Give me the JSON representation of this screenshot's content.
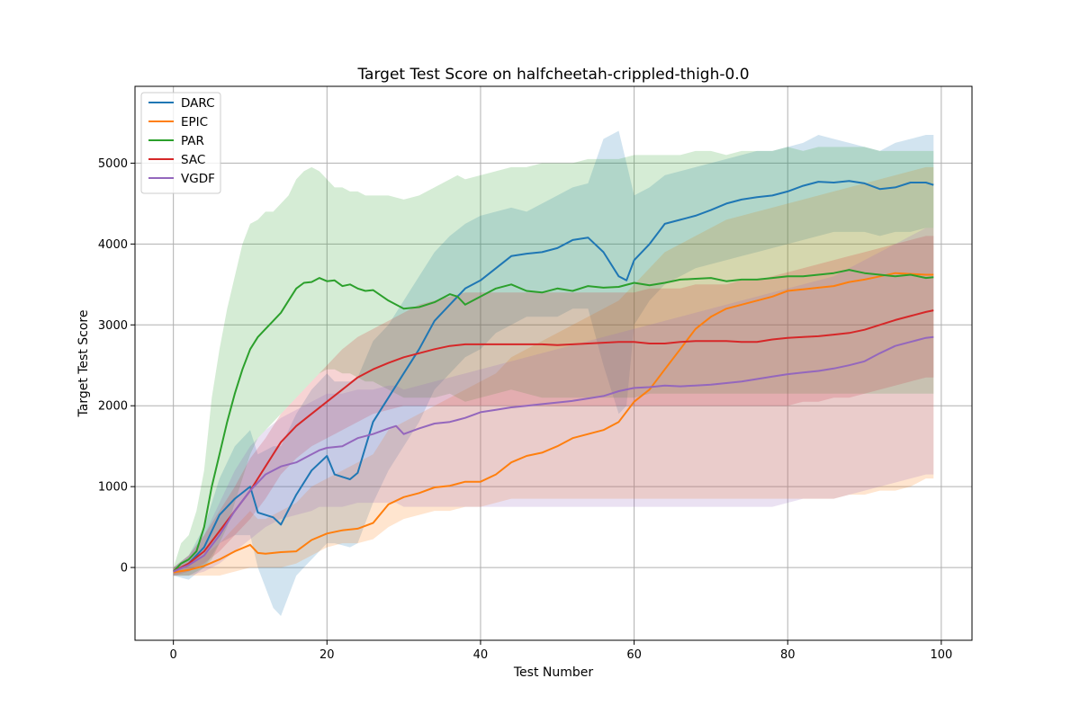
{
  "chart_data": {
    "type": "line",
    "title": "Target Test Score on halfcheetah-crippled-thigh-0.0",
    "xlabel": "Test Number",
    "ylabel": "Target Test Score",
    "xlim": [
      -5,
      104
    ],
    "ylim": [
      -900,
      5950
    ],
    "x_ticks": [
      0,
      20,
      40,
      60,
      80,
      100
    ],
    "y_ticks": [
      0,
      1000,
      2000,
      3000,
      4000,
      5000
    ],
    "grid": true,
    "legend_position": "top-left",
    "band_opacity": 0.2,
    "series": [
      {
        "name": "DARC",
        "color": "#1f77b4",
        "x": [
          0,
          2,
          4,
          6,
          8,
          10,
          11,
          13,
          14,
          16,
          18,
          20,
          21,
          23,
          24,
          26,
          28,
          30,
          32,
          34,
          36,
          38,
          40,
          42,
          44,
          46,
          48,
          50,
          52,
          54,
          56,
          58,
          59,
          60,
          62,
          64,
          66,
          68,
          70,
          72,
          74,
          76,
          78,
          80,
          82,
          84,
          86,
          88,
          90,
          92,
          94,
          96,
          98,
          99
        ],
        "y": [
          -50,
          50,
          250,
          650,
          850,
          1000,
          680,
          620,
          530,
          900,
          1200,
          1380,
          1150,
          1090,
          1170,
          1800,
          2100,
          2400,
          2700,
          3050,
          3250,
          3450,
          3550,
          3700,
          3850,
          3880,
          3900,
          3950,
          4050,
          4080,
          3900,
          3600,
          3550,
          3800,
          4000,
          4250,
          4300,
          4350,
          4420,
          4500,
          4550,
          4580,
          4600,
          4650,
          4720,
          4770,
          4760,
          4780,
          4750,
          4680,
          4700,
          4760,
          4760,
          4730
        ],
        "upper": [
          0,
          150,
          500,
          1100,
          1500,
          1700,
          1400,
          1500,
          1500,
          1900,
          2200,
          2400,
          2300,
          2300,
          2350,
          2800,
          3000,
          3300,
          3600,
          3900,
          4100,
          4250,
          4350,
          4400,
          4450,
          4400,
          4500,
          4600,
          4700,
          4750,
          5300,
          5400,
          5000,
          4600,
          4700,
          4850,
          4900,
          4950,
          5000,
          5050,
          5100,
          5150,
          5150,
          5200,
          5250,
          5350,
          5300,
          5250,
          5200,
          5150,
          5250,
          5300,
          5350,
          5350
        ],
        "lower": [
          -100,
          -150,
          0,
          300,
          400,
          400,
          0,
          -500,
          -600,
          -100,
          100,
          300,
          300,
          250,
          300,
          800,
          1200,
          1500,
          1800,
          2200,
          2400,
          2600,
          2700,
          2900,
          3000,
          3100,
          3100,
          3100,
          3200,
          3200,
          2500,
          1900,
          2000,
          3000,
          3300,
          3500,
          3600,
          3700,
          3750,
          3800,
          3850,
          3900,
          3950,
          4000,
          4050,
          4100,
          4150,
          4150,
          4150,
          4100,
          4150,
          4150,
          4200,
          4200
        ]
      },
      {
        "name": "EPIC",
        "color": "#ff7f0e",
        "x": [
          0,
          2,
          4,
          6,
          8,
          10,
          11,
          12,
          14,
          16,
          18,
          20,
          22,
          24,
          26,
          28,
          30,
          32,
          34,
          36,
          38,
          40,
          42,
          44,
          46,
          48,
          50,
          52,
          54,
          56,
          58,
          60,
          62,
          64,
          66,
          68,
          70,
          72,
          74,
          76,
          78,
          80,
          82,
          84,
          86,
          88,
          90,
          92,
          94,
          96,
          98,
          99
        ],
        "y": [
          -60,
          -30,
          20,
          100,
          200,
          280,
          180,
          170,
          190,
          200,
          340,
          420,
          460,
          480,
          550,
          780,
          870,
          920,
          990,
          1010,
          1060,
          1060,
          1150,
          1300,
          1380,
          1420,
          1500,
          1600,
          1650,
          1700,
          1800,
          2050,
          2200,
          2450,
          2700,
          2950,
          3100,
          3200,
          3250,
          3300,
          3350,
          3420,
          3440,
          3460,
          3480,
          3530,
          3560,
          3600,
          3640,
          3630,
          3620,
          3620
        ],
        "upper": [
          0,
          50,
          150,
          300,
          500,
          700,
          600,
          600,
          700,
          800,
          1000,
          1100,
          1200,
          1300,
          1400,
          1700,
          1800,
          1900,
          2000,
          2100,
          2200,
          2300,
          2400,
          2600,
          2700,
          2800,
          2900,
          3000,
          3100,
          3200,
          3300,
          3500,
          3700,
          3900,
          4000,
          4100,
          4200,
          4300,
          4350,
          4400,
          4450,
          4500,
          4550,
          4600,
          4650,
          4700,
          4750,
          4800,
          4850,
          4900,
          4950,
          4950
        ],
        "lower": [
          -100,
          -100,
          -100,
          -100,
          -50,
          0,
          0,
          0,
          0,
          50,
          150,
          250,
          300,
          300,
          350,
          500,
          600,
          650,
          700,
          700,
          750,
          750,
          800,
          850,
          850,
          850,
          850,
          850,
          850,
          850,
          850,
          850,
          850,
          850,
          850,
          850,
          850,
          850,
          850,
          850,
          850,
          850,
          850,
          850,
          850,
          900,
          900,
          950,
          950,
          1000,
          1100,
          1100
        ]
      },
      {
        "name": "PAR",
        "color": "#2ca02c",
        "x": [
          0,
          1,
          2,
          3,
          4,
          5,
          6,
          7,
          8,
          9,
          10,
          11,
          12,
          13,
          14,
          15,
          16,
          17,
          18,
          19,
          20,
          21,
          22,
          23,
          24,
          25,
          26,
          28,
          30,
          32,
          34,
          36,
          37,
          38,
          40,
          42,
          44,
          46,
          48,
          50,
          52,
          54,
          56,
          58,
          60,
          62,
          64,
          66,
          68,
          70,
          72,
          74,
          76,
          78,
          80,
          82,
          84,
          86,
          88,
          90,
          92,
          94,
          96,
          98,
          99
        ],
        "y": [
          -50,
          50,
          100,
          200,
          500,
          1000,
          1400,
          1800,
          2150,
          2450,
          2700,
          2850,
          2950,
          3050,
          3150,
          3300,
          3450,
          3520,
          3530,
          3580,
          3540,
          3550,
          3480,
          3500,
          3450,
          3420,
          3430,
          3300,
          3200,
          3220,
          3280,
          3380,
          3350,
          3250,
          3350,
          3450,
          3500,
          3420,
          3400,
          3450,
          3420,
          3480,
          3460,
          3470,
          3520,
          3490,
          3520,
          3560,
          3570,
          3580,
          3540,
          3560,
          3560,
          3580,
          3600,
          3600,
          3620,
          3640,
          3680,
          3640,
          3620,
          3600,
          3620,
          3580,
          3590
        ],
        "upper": [
          0,
          300,
          400,
          700,
          1200,
          2100,
          2700,
          3200,
          3600,
          4000,
          4250,
          4300,
          4400,
          4400,
          4500,
          4600,
          4800,
          4900,
          4950,
          4900,
          4800,
          4700,
          4700,
          4650,
          4650,
          4600,
          4600,
          4600,
          4550,
          4600,
          4700,
          4800,
          4850,
          4800,
          4850,
          4900,
          4950,
          4950,
          5000,
          5000,
          5000,
          5050,
          5050,
          5050,
          5100,
          5100,
          5100,
          5100,
          5150,
          5150,
          5100,
          5150,
          5150,
          5150,
          5200,
          5150,
          5200,
          5200,
          5200,
          5200,
          5150,
          5150,
          5150,
          5150,
          5150
        ],
        "lower": [
          -100,
          -100,
          -100,
          -50,
          0,
          100,
          300,
          500,
          800,
          1100,
          1400,
          1600,
          1700,
          1800,
          1900,
          2000,
          2100,
          2200,
          2300,
          2400,
          2450,
          2450,
          2400,
          2400,
          2350,
          2300,
          2300,
          2200,
          2100,
          2100,
          2100,
          2150,
          2100,
          2050,
          2100,
          2150,
          2200,
          2150,
          2100,
          2100,
          2100,
          2100,
          2100,
          2100,
          2100,
          2150,
          2150,
          2150,
          2150,
          2150,
          2150,
          2150,
          2150,
          2150,
          2150,
          2150,
          2150,
          2150,
          2150,
          2150,
          2150,
          2150,
          2150,
          2150,
          2150
        ]
      },
      {
        "name": "SAC",
        "color": "#d62728",
        "x": [
          0,
          2,
          4,
          6,
          8,
          10,
          12,
          14,
          16,
          18,
          20,
          22,
          24,
          26,
          28,
          30,
          32,
          34,
          36,
          38,
          40,
          42,
          44,
          46,
          48,
          50,
          52,
          54,
          56,
          58,
          60,
          62,
          64,
          66,
          68,
          70,
          72,
          74,
          76,
          78,
          80,
          82,
          84,
          86,
          88,
          90,
          92,
          94,
          96,
          98,
          99
        ],
        "y": [
          -50,
          50,
          200,
          450,
          700,
          950,
          1250,
          1550,
          1750,
          1900,
          2050,
          2200,
          2350,
          2450,
          2530,
          2600,
          2650,
          2700,
          2740,
          2760,
          2760,
          2760,
          2760,
          2760,
          2760,
          2750,
          2760,
          2770,
          2780,
          2790,
          2790,
          2770,
          2770,
          2790,
          2800,
          2800,
          2800,
          2790,
          2790,
          2820,
          2840,
          2850,
          2860,
          2880,
          2900,
          2940,
          3000,
          3060,
          3110,
          3160,
          3180
        ],
        "upper": [
          0,
          150,
          400,
          700,
          1000,
          1350,
          1600,
          1900,
          2100,
          2300,
          2500,
          2700,
          2850,
          2950,
          3050,
          3150,
          3250,
          3300,
          3350,
          3400,
          3400,
          3400,
          3400,
          3400,
          3400,
          3400,
          3400,
          3400,
          3400,
          3400,
          3400,
          3450,
          3450,
          3450,
          3500,
          3500,
          3500,
          3550,
          3550,
          3600,
          3650,
          3700,
          3750,
          3800,
          3850,
          3900,
          3950,
          4000,
          4050,
          4100,
          4100
        ],
        "lower": [
          -100,
          -50,
          50,
          200,
          400,
          600,
          850,
          1150,
          1350,
          1500,
          1600,
          1700,
          1800,
          1900,
          1950,
          2000,
          2000,
          2000,
          2000,
          2000,
          2000,
          2000,
          2000,
          2000,
          2000,
          2000,
          2000,
          2000,
          2000,
          2000,
          2000,
          2000,
          2000,
          2000,
          2000,
          2000,
          2000,
          2000,
          2000,
          2000,
          2000,
          2050,
          2050,
          2100,
          2100,
          2150,
          2200,
          2250,
          2300,
          2350,
          2350
        ]
      },
      {
        "name": "VGDF",
        "color": "#9467bd",
        "x": [
          0,
          2,
          4,
          6,
          8,
          10,
          12,
          14,
          16,
          18,
          19,
          20,
          22,
          24,
          26,
          28,
          29,
          30,
          32,
          34,
          36,
          38,
          40,
          42,
          44,
          46,
          48,
          50,
          52,
          54,
          56,
          58,
          60,
          62,
          64,
          66,
          68,
          70,
          72,
          74,
          76,
          78,
          80,
          82,
          84,
          86,
          88,
          90,
          92,
          94,
          96,
          98,
          99
        ],
        "y": [
          -50,
          30,
          150,
          400,
          700,
          950,
          1150,
          1250,
          1300,
          1400,
          1450,
          1480,
          1500,
          1600,
          1650,
          1720,
          1750,
          1650,
          1720,
          1780,
          1800,
          1850,
          1920,
          1950,
          1980,
          2000,
          2020,
          2040,
          2060,
          2090,
          2120,
          2180,
          2220,
          2230,
          2250,
          2240,
          2250,
          2260,
          2280,
          2300,
          2330,
          2360,
          2390,
          2410,
          2430,
          2460,
          2500,
          2550,
          2650,
          2740,
          2790,
          2840,
          2850
        ],
        "upper": [
          0,
          150,
          400,
          800,
          1200,
          1500,
          1700,
          1850,
          1950,
          2050,
          2100,
          2150,
          2150,
          2200,
          2200,
          2250,
          2250,
          2200,
          2250,
          2300,
          2350,
          2400,
          2450,
          2500,
          2550,
          2600,
          2650,
          2700,
          2750,
          2800,
          2850,
          2900,
          2950,
          3000,
          3050,
          3100,
          3150,
          3200,
          3250,
          3300,
          3350,
          3400,
          3450,
          3500,
          3550,
          3600,
          3700,
          3800,
          3900,
          4000,
          4100,
          4200,
          4200
        ],
        "lower": [
          -100,
          -100,
          -50,
          50,
          200,
          350,
          500,
          600,
          650,
          700,
          750,
          750,
          750,
          800,
          800,
          800,
          800,
          750,
          750,
          750,
          750,
          750,
          750,
          750,
          750,
          750,
          750,
          750,
          750,
          750,
          750,
          750,
          750,
          750,
          750,
          750,
          750,
          750,
          750,
          750,
          750,
          750,
          800,
          850,
          850,
          850,
          900,
          950,
          1000,
          1050,
          1100,
          1150,
          1150
        ]
      }
    ]
  }
}
